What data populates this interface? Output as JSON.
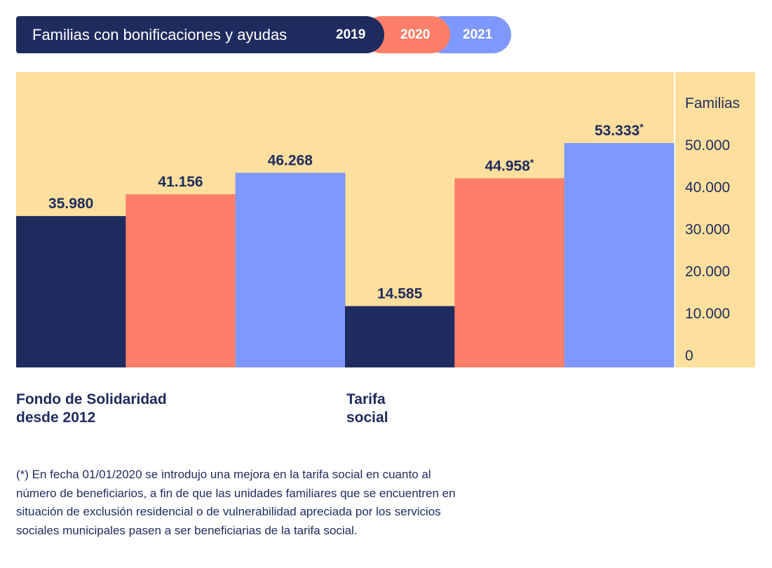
{
  "header": {
    "title": "Familias con bonificaciones y ayudas",
    "legend": [
      {
        "label": "2019",
        "color": "#1e2b5e"
      },
      {
        "label": "2020",
        "color": "#fe7f69"
      },
      {
        "label": "2021",
        "color": "#7f98fd"
      }
    ]
  },
  "categories_display": [
    {
      "line1": "Fondo de Solidaridad",
      "line2": "desde 2012"
    },
    {
      "line1": "Tarifa",
      "line2": "social"
    }
  ],
  "chart_data": {
    "type": "bar",
    "title": "Familias con bonificaciones y ayudas",
    "categories": [
      "Fondo de Solidaridad desde 2012",
      "Tarifa social"
    ],
    "series": [
      {
        "name": "2019",
        "values": [
          35980,
          14585
        ],
        "labels": [
          "35.980",
          "14.585"
        ]
      },
      {
        "name": "2020",
        "values": [
          41156,
          44958
        ],
        "labels": [
          "41.156",
          "44.958*"
        ]
      },
      {
        "name": "2021",
        "values": [
          46268,
          53333
        ],
        "labels": [
          "46.268",
          "53.333*"
        ]
      }
    ],
    "ylabel": "Familias",
    "ylim": [
      0,
      70000
    ],
    "yticks": [
      0,
      10000,
      20000,
      30000,
      40000,
      50000
    ],
    "ytick_labels": [
      "0",
      "10.000",
      "20.000",
      "30.000",
      "40.000",
      "50.000"
    ],
    "axis_position": "right",
    "background_color": "#fedf9e"
  },
  "footnote": {
    "lines": [
      "(*) En fecha 01/01/2020 se introdujo una mejora en la tarifa social en cuanto al",
      "número de beneficiarios, a fin de que las unidades familiares que se encuentren en",
      "situación de exclusión residencial o de vulnerabilidad apreciada por los servicios",
      "sociales municipales pasen a ser beneficiarias de la tarifa social."
    ]
  }
}
